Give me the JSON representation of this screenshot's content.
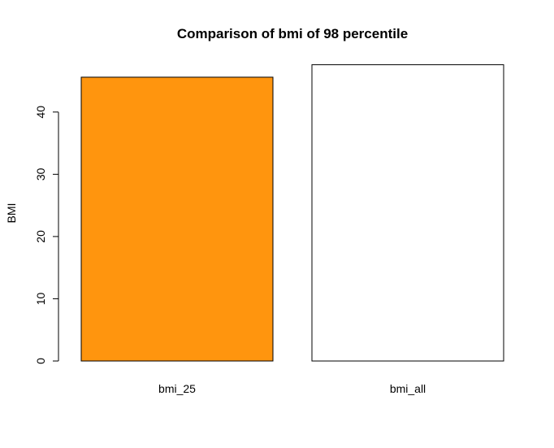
{
  "chart_data": {
    "type": "bar",
    "title": "Comparison of bmi of 98 percentile",
    "xlabel": "",
    "ylabel": "BMI",
    "categories": [
      "bmi_25",
      "bmi_all"
    ],
    "values": [
      45.6,
      47.6
    ],
    "bar_colors": [
      "#FF950E",
      "#FFFFFF"
    ],
    "bar_border_color": "#000000",
    "yticks": [
      0,
      10,
      20,
      30,
      40
    ],
    "ylim": [
      0,
      47.6
    ],
    "grid": false,
    "legend": "none"
  }
}
